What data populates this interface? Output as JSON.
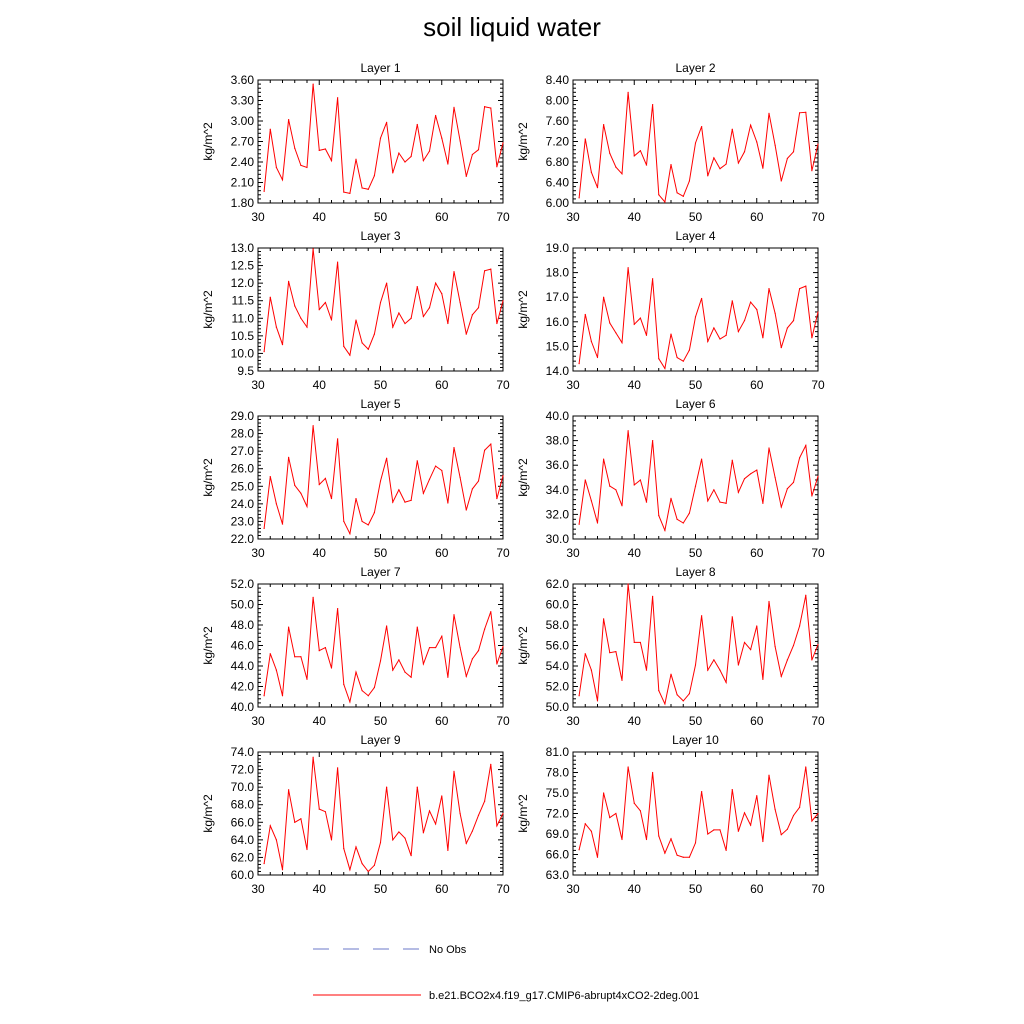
{
  "page_title": "soil liquid water",
  "legend": {
    "obs_label": "No Obs",
    "model_label": "b.e21.BCO2x4.f19_g17.CMIP6-abrupt4xCO2-2deg.001",
    "obs_color": "#6b78c8",
    "model_color": "#ff0000"
  },
  "chart_data": [
    {
      "type": "line",
      "title": "Layer 1",
      "ylabel": "kg/m^2",
      "xlim": [
        30,
        70
      ],
      "xticks": [
        30,
        40,
        50,
        60,
        70
      ],
      "ylim": [
        1.8,
        3.6
      ],
      "yticks": [
        1.8,
        2.1,
        2.4,
        2.7,
        3.0,
        3.3,
        3.6
      ],
      "ydecimals": 2,
      "x": [
        31,
        32,
        33,
        34,
        35,
        36,
        37,
        38,
        39,
        40,
        41,
        42,
        43,
        44,
        45,
        46,
        47,
        48,
        49,
        50,
        51,
        52,
        53,
        54,
        55,
        56,
        57,
        58,
        59,
        60,
        61,
        62,
        63,
        64,
        65,
        66,
        67,
        68,
        69,
        70
      ],
      "series": [
        {
          "name": "b.e21.BCO2x4.f19_g17.CMIP6-abrupt4xCO2-2deg.001",
          "values": [
            1.97,
            2.88,
            2.32,
            2.14,
            3.02,
            2.6,
            2.35,
            2.32,
            3.54,
            2.57,
            2.59,
            2.42,
            3.34,
            1.96,
            1.94,
            2.44,
            2.02,
            2.0,
            2.2,
            2.75,
            2.98,
            2.24,
            2.53,
            2.4,
            2.48,
            2.95,
            2.42,
            2.56,
            3.08,
            2.75,
            2.37,
            3.2,
            2.71,
            2.19,
            2.51,
            2.58,
            3.21,
            3.19,
            2.33,
            2.68
          ]
        }
      ]
    },
    {
      "type": "line",
      "title": "Layer 2",
      "ylabel": "kg/m^2",
      "xlim": [
        30,
        70
      ],
      "xticks": [
        30,
        40,
        50,
        60,
        70
      ],
      "ylim": [
        6.0,
        8.4
      ],
      "yticks": [
        6.0,
        6.4,
        6.8,
        7.2,
        7.6,
        8.0,
        8.4
      ],
      "ydecimals": 2,
      "x": [
        31,
        32,
        33,
        34,
        35,
        36,
        37,
        38,
        39,
        40,
        41,
        42,
        43,
        44,
        45,
        46,
        47,
        48,
        49,
        50,
        51,
        52,
        53,
        54,
        55,
        56,
        57,
        58,
        59,
        60,
        61,
        62,
        63,
        64,
        65,
        66,
        67,
        68,
        69,
        70
      ],
      "series": [
        {
          "name": "b.e21.BCO2x4.f19_g17.CMIP6-abrupt4xCO2-2deg.001",
          "values": [
            6.1,
            7.25,
            6.6,
            6.3,
            7.53,
            6.97,
            6.7,
            6.57,
            8.16,
            6.92,
            7.02,
            6.74,
            7.92,
            6.16,
            6.02,
            6.75,
            6.2,
            6.13,
            6.43,
            7.17,
            7.49,
            6.53,
            6.88,
            6.67,
            6.76,
            7.44,
            6.78,
            7.0,
            7.52,
            7.19,
            6.68,
            7.75,
            7.13,
            6.43,
            6.87,
            7.0,
            7.76,
            7.77,
            6.63,
            7.15
          ]
        }
      ]
    },
    {
      "type": "line",
      "title": "Layer 3",
      "ylabel": "kg/m^2",
      "xlim": [
        30,
        70
      ],
      "xticks": [
        30,
        40,
        50,
        60,
        70
      ],
      "ylim": [
        9.5,
        13.0
      ],
      "yticks": [
        9.5,
        10.0,
        10.5,
        11.0,
        11.5,
        12.0,
        12.5,
        13.0
      ],
      "ydecimals": 1,
      "x": [
        31,
        32,
        33,
        34,
        35,
        36,
        37,
        38,
        39,
        40,
        41,
        42,
        43,
        44,
        45,
        46,
        47,
        48,
        49,
        50,
        51,
        52,
        53,
        54,
        55,
        56,
        57,
        58,
        59,
        60,
        61,
        62,
        63,
        64,
        65,
        66,
        67,
        68,
        69,
        70
      ],
      "series": [
        {
          "name": "b.e21.BCO2x4.f19_g17.CMIP6-abrupt4xCO2-2deg.001",
          "values": [
            10.05,
            11.6,
            10.75,
            10.25,
            12.05,
            11.35,
            11.0,
            10.75,
            12.98,
            11.25,
            11.45,
            10.95,
            12.6,
            10.2,
            9.95,
            10.95,
            10.3,
            10.12,
            10.55,
            11.45,
            12.0,
            10.75,
            11.15,
            10.85,
            11.0,
            11.9,
            11.05,
            11.3,
            12.0,
            11.7,
            10.85,
            12.33,
            11.45,
            10.55,
            11.1,
            11.3,
            12.35,
            12.4,
            10.85,
            11.5
          ]
        }
      ]
    },
    {
      "type": "line",
      "title": "Layer 4",
      "ylabel": "kg/m^2",
      "xlim": [
        30,
        70
      ],
      "xticks": [
        30,
        40,
        50,
        60,
        70
      ],
      "ylim": [
        14.0,
        19.0
      ],
      "yticks": [
        14.0,
        15.0,
        16.0,
        17.0,
        18.0,
        19.0
      ],
      "ydecimals": 1,
      "x": [
        31,
        32,
        33,
        34,
        35,
        36,
        37,
        38,
        39,
        40,
        41,
        42,
        43,
        44,
        45,
        46,
        47,
        48,
        49,
        50,
        51,
        52,
        53,
        54,
        55,
        56,
        57,
        58,
        59,
        60,
        61,
        62,
        63,
        64,
        65,
        66,
        67,
        68,
        69,
        70
      ],
      "series": [
        {
          "name": "b.e21.BCO2x4.f19_g17.CMIP6-abrupt4xCO2-2deg.001",
          "values": [
            14.3,
            16.3,
            15.2,
            14.55,
            17.0,
            15.95,
            15.55,
            15.15,
            18.2,
            15.9,
            16.15,
            15.45,
            17.75,
            14.5,
            14.1,
            15.5,
            14.55,
            14.4,
            14.85,
            16.2,
            16.95,
            15.2,
            15.75,
            15.3,
            15.45,
            16.85,
            15.6,
            16.05,
            16.8,
            16.5,
            15.35,
            17.35,
            16.35,
            14.95,
            15.75,
            16.05,
            17.35,
            17.45,
            15.35,
            16.4
          ]
        }
      ]
    },
    {
      "type": "line",
      "title": "Layer 5",
      "ylabel": "kg/m^2",
      "xlim": [
        30,
        70
      ],
      "xticks": [
        30,
        40,
        50,
        60,
        70
      ],
      "ylim": [
        22.0,
        29.0
      ],
      "yticks": [
        22.0,
        23.0,
        24.0,
        25.0,
        26.0,
        27.0,
        28.0,
        29.0
      ],
      "ydecimals": 1,
      "x": [
        31,
        32,
        33,
        34,
        35,
        36,
        37,
        38,
        39,
        40,
        41,
        42,
        43,
        44,
        45,
        46,
        47,
        48,
        49,
        50,
        51,
        52,
        53,
        54,
        55,
        56,
        57,
        58,
        59,
        60,
        61,
        62,
        63,
        64,
        65,
        66,
        67,
        68,
        69,
        70
      ],
      "series": [
        {
          "name": "b.e21.BCO2x4.f19_g17.CMIP6-abrupt4xCO2-2deg.001",
          "values": [
            22.6,
            25.55,
            24.0,
            22.85,
            26.65,
            25.05,
            24.6,
            23.85,
            28.45,
            25.1,
            25.45,
            24.3,
            27.7,
            23.0,
            22.3,
            24.3,
            23.0,
            22.8,
            23.5,
            25.3,
            26.6,
            24.1,
            24.8,
            24.1,
            24.2,
            26.45,
            24.6,
            25.4,
            26.15,
            25.9,
            24.05,
            27.2,
            25.5,
            23.65,
            24.85,
            25.3,
            27.05,
            27.4,
            24.3,
            25.6
          ]
        }
      ]
    },
    {
      "type": "line",
      "title": "Layer 6",
      "ylabel": "kg/m^2",
      "xlim": [
        30,
        70
      ],
      "xticks": [
        30,
        40,
        50,
        60,
        70
      ],
      "ylim": [
        30.0,
        40.0
      ],
      "yticks": [
        30.0,
        32.0,
        34.0,
        36.0,
        38.0,
        40.0
      ],
      "ydecimals": 1,
      "x": [
        31,
        32,
        33,
        34,
        35,
        36,
        37,
        38,
        39,
        40,
        41,
        42,
        43,
        44,
        45,
        46,
        47,
        48,
        49,
        50,
        51,
        52,
        53,
        54,
        55,
        56,
        57,
        58,
        59,
        60,
        61,
        62,
        63,
        64,
        65,
        66,
        67,
        68,
        69,
        70
      ],
      "series": [
        {
          "name": "b.e21.BCO2x4.f19_g17.CMIP6-abrupt4xCO2-2deg.001",
          "values": [
            31.2,
            34.8,
            33.1,
            31.3,
            36.5,
            34.3,
            34.0,
            32.7,
            38.8,
            34.4,
            34.8,
            33.0,
            38.0,
            31.9,
            30.7,
            33.3,
            31.6,
            31.3,
            32.1,
            34.3,
            36.5,
            33.1,
            34.0,
            33.0,
            32.9,
            36.4,
            33.8,
            34.9,
            35.3,
            35.6,
            32.9,
            37.4,
            35.0,
            32.6,
            34.1,
            34.6,
            36.6,
            37.6,
            33.5,
            35.1
          ]
        }
      ]
    },
    {
      "type": "line",
      "title": "Layer 7",
      "ylabel": "kg/m^2",
      "xlim": [
        30,
        70
      ],
      "xticks": [
        30,
        40,
        50,
        60,
        70
      ],
      "ylim": [
        40.0,
        52.0
      ],
      "yticks": [
        40.0,
        42.0,
        44.0,
        46.0,
        48.0,
        50.0,
        52.0
      ],
      "ydecimals": 1,
      "x": [
        31,
        32,
        33,
        34,
        35,
        36,
        37,
        38,
        39,
        40,
        41,
        42,
        43,
        44,
        45,
        46,
        47,
        48,
        49,
        50,
        51,
        52,
        53,
        54,
        55,
        56,
        57,
        58,
        59,
        60,
        61,
        62,
        63,
        64,
        65,
        66,
        67,
        68,
        69,
        70
      ],
      "series": [
        {
          "name": "b.e21.BCO2x4.f19_g17.CMIP6-abrupt4xCO2-2deg.001",
          "values": [
            41.1,
            45.2,
            43.6,
            41.1,
            47.8,
            44.9,
            44.9,
            42.7,
            50.7,
            45.5,
            45.8,
            43.8,
            49.6,
            42.2,
            40.5,
            43.4,
            41.6,
            41.1,
            41.9,
            44.5,
            47.9,
            43.6,
            44.6,
            43.4,
            42.9,
            47.8,
            44.2,
            45.8,
            45.8,
            46.9,
            42.9,
            49.0,
            45.8,
            43.0,
            44.7,
            45.5,
            47.6,
            49.3,
            44.2,
            45.9
          ]
        }
      ]
    },
    {
      "type": "line",
      "title": "Layer 8",
      "ylabel": "kg/m^2",
      "xlim": [
        30,
        70
      ],
      "xticks": [
        30,
        40,
        50,
        60,
        70
      ],
      "ylim": [
        50.0,
        62.0
      ],
      "yticks": [
        50.0,
        52.0,
        54.0,
        56.0,
        58.0,
        60.0,
        62.0
      ],
      "ydecimals": 1,
      "x": [
        31,
        32,
        33,
        34,
        35,
        36,
        37,
        38,
        39,
        40,
        41,
        42,
        43,
        44,
        45,
        46,
        47,
        48,
        49,
        50,
        51,
        52,
        53,
        54,
        55,
        56,
        57,
        58,
        59,
        60,
        61,
        62,
        63,
        64,
        65,
        66,
        67,
        68,
        69,
        70
      ],
      "series": [
        {
          "name": "b.e21.BCO2x4.f19_g17.CMIP6-abrupt4xCO2-2deg.001",
          "values": [
            51.1,
            55.2,
            53.6,
            50.6,
            58.6,
            55.3,
            55.4,
            52.6,
            62.0,
            56.3,
            56.3,
            53.6,
            60.8,
            51.6,
            50.3,
            53.2,
            51.2,
            50.6,
            51.3,
            54.1,
            58.9,
            53.6,
            54.6,
            53.6,
            52.4,
            58.8,
            54.1,
            56.3,
            55.6,
            57.9,
            52.7,
            60.3,
            55.9,
            53.0,
            54.6,
            56.0,
            57.9,
            60.9,
            54.6,
            56.1
          ]
        }
      ]
    },
    {
      "type": "line",
      "title": "Layer 9",
      "ylabel": "kg/m^2",
      "xlim": [
        30,
        70
      ],
      "xticks": [
        30,
        40,
        50,
        60,
        70
      ],
      "ylim": [
        60.0,
        74.0
      ],
      "yticks": [
        60.0,
        62.0,
        64.0,
        66.0,
        68.0,
        70.0,
        72.0,
        74.0
      ],
      "ydecimals": 1,
      "x": [
        31,
        32,
        33,
        34,
        35,
        36,
        37,
        38,
        39,
        40,
        41,
        42,
        43,
        44,
        45,
        46,
        47,
        48,
        49,
        50,
        51,
        52,
        53,
        54,
        55,
        56,
        57,
        58,
        59,
        60,
        61,
        62,
        63,
        64,
        65,
        66,
        67,
        68,
        69,
        70
      ],
      "series": [
        {
          "name": "b.e21.BCO2x4.f19_g17.CMIP6-abrupt4xCO2-2deg.001",
          "values": [
            61.3,
            65.6,
            64.0,
            60.6,
            69.7,
            66.0,
            66.4,
            62.9,
            73.4,
            67.5,
            67.2,
            64.0,
            72.2,
            63.0,
            60.6,
            63.2,
            61.3,
            60.4,
            61.1,
            63.7,
            70.0,
            64.0,
            64.9,
            64.2,
            62.2,
            70.0,
            64.8,
            67.3,
            65.8,
            69.0,
            62.8,
            71.8,
            67.0,
            63.6,
            65.0,
            66.8,
            68.4,
            72.6,
            65.6,
            67.0
          ]
        }
      ]
    },
    {
      "type": "line",
      "title": "Layer 10",
      "ylabel": "kg/m^2",
      "xlim": [
        30,
        70
      ],
      "xticks": [
        30,
        40,
        50,
        60,
        70
      ],
      "ylim": [
        63.0,
        81.0
      ],
      "yticks": [
        63.0,
        66.0,
        69.0,
        72.0,
        75.0,
        78.0,
        81.0
      ],
      "ydecimals": 1,
      "x": [
        31,
        32,
        33,
        34,
        35,
        36,
        37,
        38,
        39,
        40,
        41,
        42,
        43,
        44,
        45,
        46,
        47,
        48,
        49,
        50,
        51,
        52,
        53,
        54,
        55,
        56,
        57,
        58,
        59,
        60,
        61,
        62,
        63,
        64,
        65,
        66,
        67,
        68,
        69,
        70
      ],
      "series": [
        {
          "name": "b.e21.BCO2x4.f19_g17.CMIP6-abrupt4xCO2-2deg.001",
          "values": [
            66.7,
            70.5,
            69.4,
            65.6,
            75.0,
            71.4,
            72.0,
            68.2,
            78.8,
            73.5,
            72.4,
            68.2,
            78.0,
            68.7,
            66.2,
            68.3,
            65.9,
            65.6,
            65.6,
            67.7,
            75.2,
            69.0,
            69.6,
            69.6,
            66.6,
            75.5,
            69.4,
            72.1,
            70.3,
            74.6,
            67.9,
            77.6,
            72.6,
            68.9,
            69.7,
            71.7,
            72.9,
            78.8,
            70.9,
            72.0
          ]
        }
      ]
    }
  ]
}
